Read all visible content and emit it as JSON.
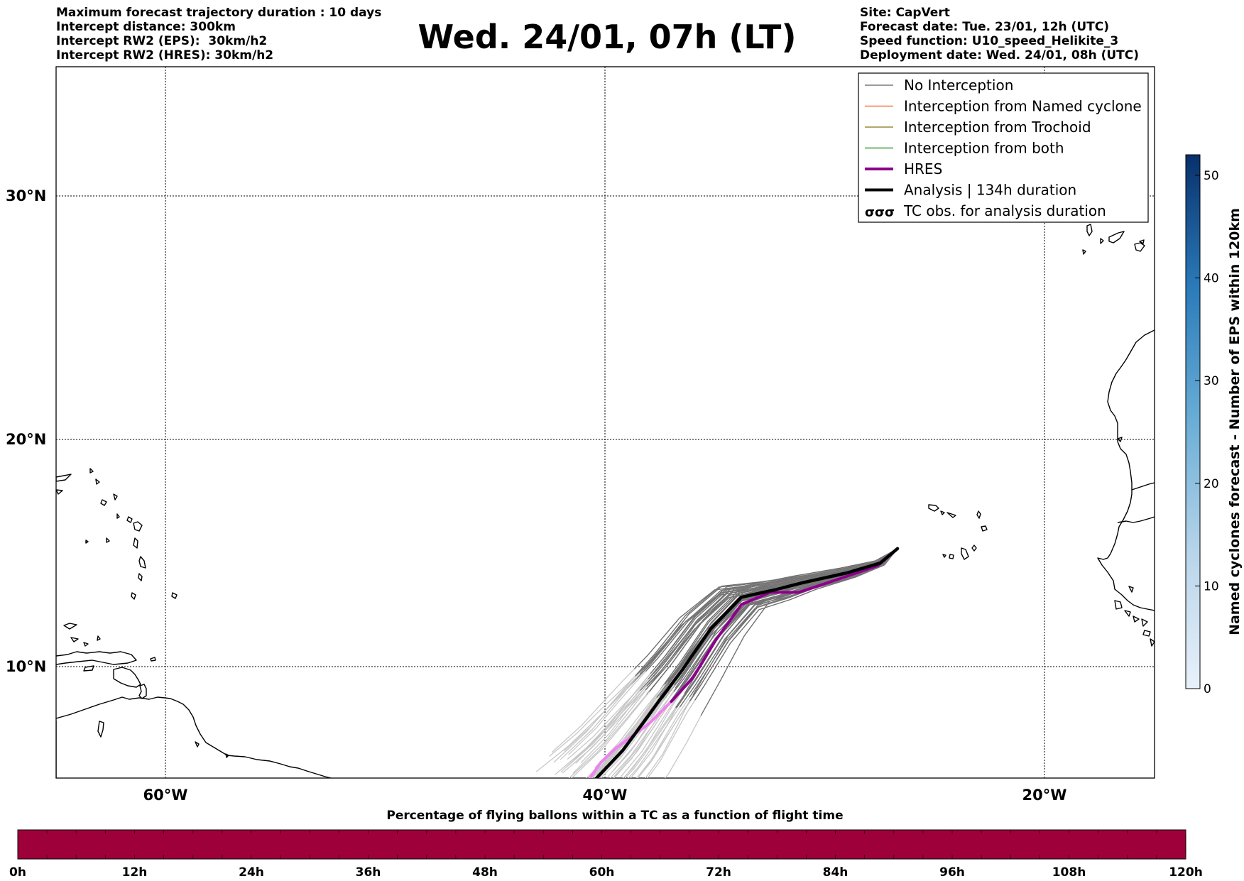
{
  "header_left": [
    "Maximum forecast trajectory duration : 10 days",
    "Intercept distance: 300km",
    "Intercept RW2 (EPS):  30km/h2",
    "Intercept RW2 (HRES): 30km/h2"
  ],
  "header_right": [
    "Site: CapVert",
    "Forecast date: Tue. 23/01, 12h (UTC)",
    "Speed function: U10_speed_Helikite_3",
    "Deployment date: Wed. 24/01, 08h (UTC)"
  ],
  "title": "Wed. 24/01, 07h (LT)",
  "map": {
    "lat_labels": [
      "30°N",
      "20°N",
      "10°N"
    ],
    "lon_labels": [
      "60°W",
      "40°W",
      "20°W"
    ],
    "lat_range": [
      5.15,
      34.45
    ],
    "lon_range": [
      -65,
      -15
    ]
  },
  "legend": {
    "items": [
      {
        "label": "No Interception",
        "color": "#7a7a7a",
        "style": "thin"
      },
      {
        "label": "Interception from Named cyclone",
        "color": "#f4774a",
        "style": "thin"
      },
      {
        "label": "Interception from Trochoid",
        "color": "#9a8a3a",
        "style": "thin"
      },
      {
        "label": "Interception from both",
        "color": "#3a9a3a",
        "style": "thin"
      },
      {
        "label": "HRES",
        "color": "#8b008b",
        "style": "thick"
      },
      {
        "label": "Analysis | 134h duration",
        "color": "#000000",
        "style": "thick"
      },
      {
        "label": "TC obs. for analysis duration",
        "color": "#000000",
        "style": "tc-icon"
      }
    ]
  },
  "colorbar_right": {
    "label": "Named cyclones forecast - Number of EPS within 120km",
    "ticks": [
      "0",
      "10",
      "20",
      "30",
      "40",
      "50"
    ],
    "range": [
      0,
      52
    ],
    "colors": [
      "#e8f1fa",
      "#08306b"
    ]
  },
  "colorbar_bottom": {
    "title": "Percentage of flying ballons within a TC as a function of flight time",
    "ticks": [
      "0h",
      "12h",
      "24h",
      "36h",
      "48h",
      "60h",
      "72h",
      "84h",
      "96h",
      "108h",
      "120h"
    ],
    "fill_color": "#9e003a"
  },
  "tracks": {
    "analysis": [
      [
        -26.7,
        14.6
      ],
      [
        -27.5,
        14.0
      ],
      [
        -29.0,
        13.6
      ],
      [
        -31.0,
        13.2
      ],
      [
        -32.3,
        12.9
      ],
      [
        -33.8,
        12.6
      ],
      [
        -35.2,
        11.3
      ],
      [
        -36.5,
        9.6
      ],
      [
        -37.5,
        8.4
      ],
      [
        -38.3,
        7.4
      ],
      [
        -39.2,
        6.3
      ],
      [
        -40.4,
        5.15
      ]
    ],
    "hres": [
      [
        -26.7,
        14.6
      ],
      [
        -27.6,
        13.9
      ],
      [
        -29.2,
        13.4
      ],
      [
        -31.2,
        12.8
      ],
      [
        -32.5,
        12.8
      ],
      [
        -33.8,
        12.3
      ],
      [
        -35.0,
        10.8
      ],
      [
        -36.0,
        9.3
      ],
      [
        -37.0,
        8.3
      ],
      [
        -38.0,
        7.4
      ],
      [
        -39.5,
        6.4
      ],
      [
        -40.2,
        5.8
      ],
      [
        -40.7,
        5.15
      ]
    ]
  }
}
